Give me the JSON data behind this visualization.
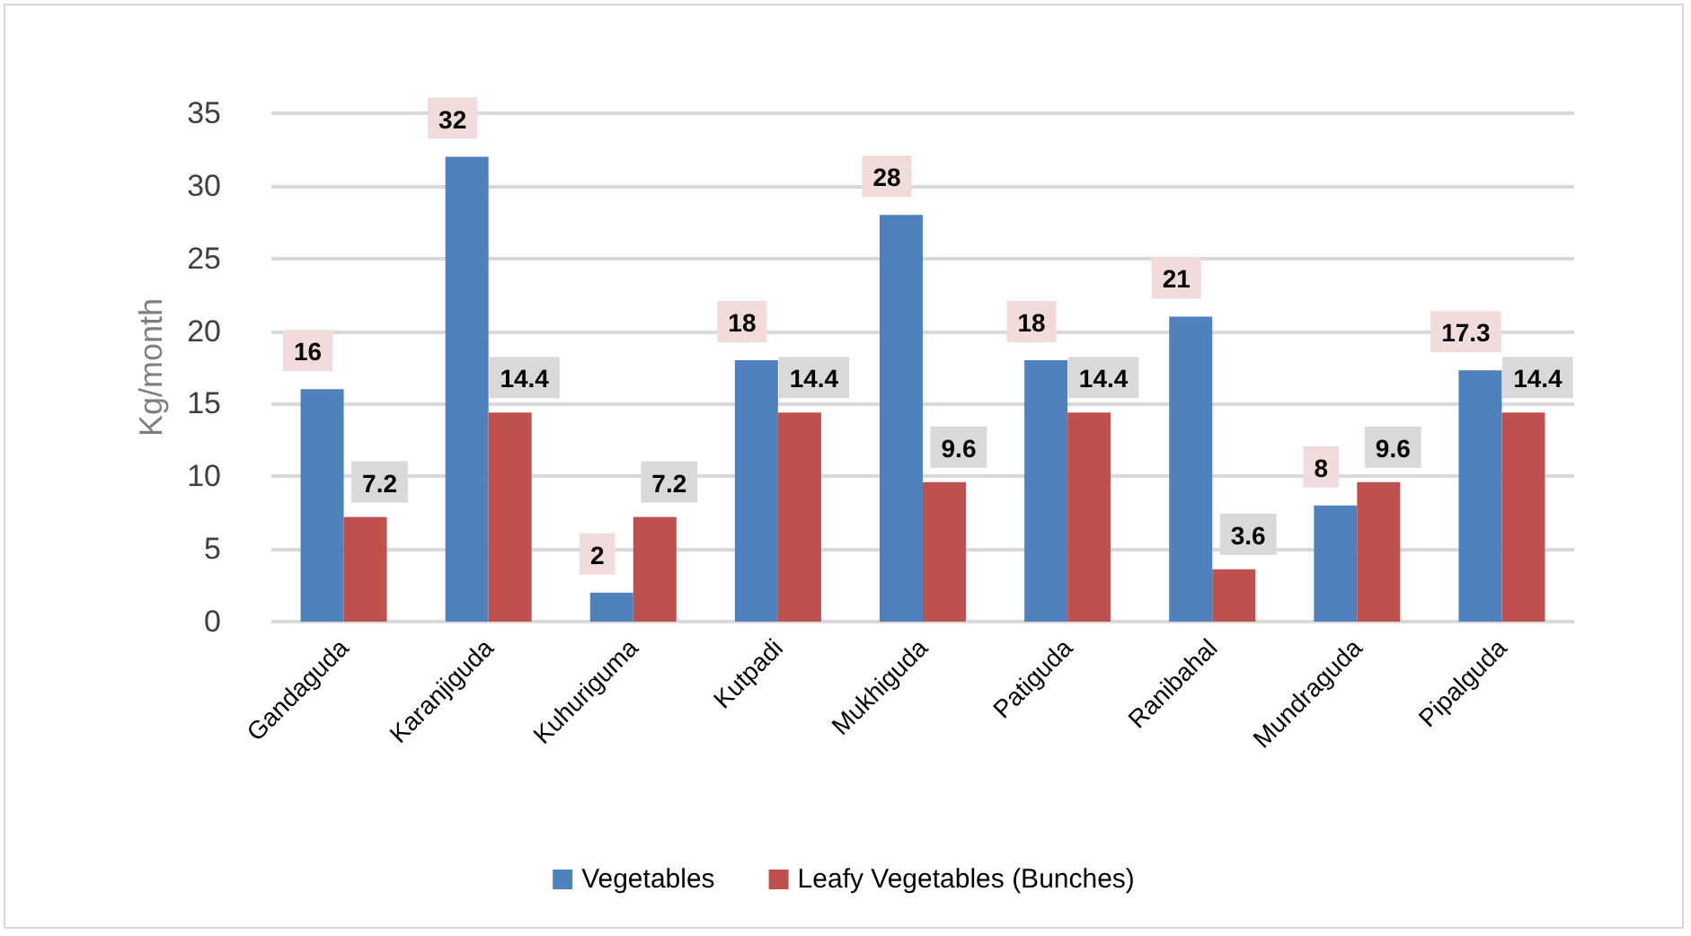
{
  "chart_data": {
    "type": "bar",
    "ylabel": "Kg/month",
    "categories": [
      "Gandaguda",
      "Karanjiguda",
      "Kuhuriguma",
      "Kutpadi",
      "Mukhiguda",
      "Patiguda",
      "Ranibahal",
      "Mundraguda",
      "Pipalguda"
    ],
    "series": [
      {
        "name": "Vegetables",
        "color": "#4f81bd",
        "values": [
          16,
          32,
          2,
          18,
          28,
          18,
          21,
          8,
          17.3
        ]
      },
      {
        "name": "Leafy Vegetables (Bunches)",
        "color": "#c0504d",
        "values": [
          7.2,
          14.4,
          7.2,
          14.4,
          9.6,
          14.4,
          3.6,
          9.6,
          14.4
        ]
      }
    ],
    "ylim": [
      0,
      35
    ],
    "yticks": [
      0,
      5,
      10,
      15,
      20,
      25,
      30,
      35
    ],
    "grid": "y",
    "legend": "bottom",
    "data_labels": true
  }
}
